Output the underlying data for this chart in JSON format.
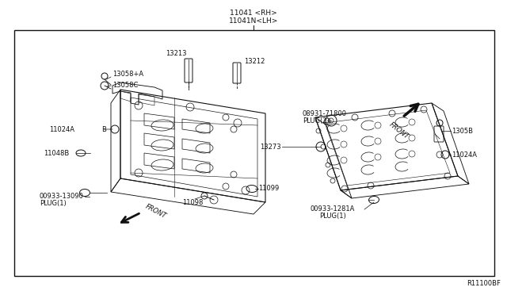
{
  "bg_color": "#ffffff",
  "border_color": "#000000",
  "line_color": "#111111",
  "diagram_title_line1": "11041 <RH>",
  "diagram_title_line2": "11041N<LH>",
  "ref_number": "R11100BF",
  "figsize": [
    6.4,
    3.72
  ],
  "dpi": 100
}
